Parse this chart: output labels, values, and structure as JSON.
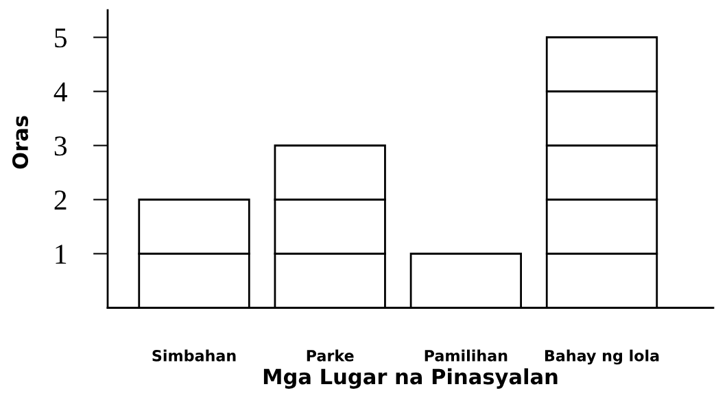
{
  "chart_data": {
    "type": "bar",
    "stacked": true,
    "xlabel": "Mga Lugar na Pinasyalan",
    "ylabel": "Oras",
    "categories": [
      "Simbahan",
      "Parke",
      "Pamilihan",
      "Bahay ng lola"
    ],
    "series": [
      {
        "color": "#ffffff",
        "values": [
          1,
          1,
          1,
          1
        ]
      },
      {
        "color": "#ffffff",
        "values": [
          1,
          1,
          null,
          1
        ]
      },
      {
        "color": "#ffffff",
        "values": [
          null,
          1,
          null,
          1
        ]
      },
      {
        "color": "#ffffff",
        "values": [
          null,
          null,
          null,
          1
        ]
      },
      {
        "color": "#ffffff",
        "values": [
          null,
          null,
          null,
          1
        ]
      }
    ],
    "ylim": [
      0,
      5.5
    ],
    "yticks": [
      1,
      2,
      3,
      4,
      5
    ]
  }
}
